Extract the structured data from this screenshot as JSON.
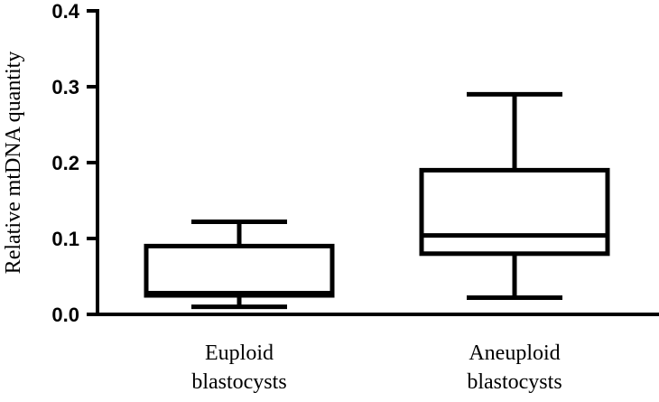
{
  "chart_data": {
    "type": "boxplot",
    "title": "",
    "xlabel": "",
    "ylabel": "Relative mtDNA quantity",
    "ylim": [
      0,
      0.4
    ],
    "yticks": [
      "0.0",
      "0.1",
      "0.2",
      "0.3",
      "0.4"
    ],
    "grid": false,
    "categories": [
      [
        "Euploid",
        "blastocysts"
      ],
      [
        "Aneuploid",
        "blastocysts"
      ]
    ],
    "boxes": [
      {
        "min": 0.01,
        "q1": 0.025,
        "median": 0.028,
        "q3": 0.09,
        "max": 0.122
      },
      {
        "min": 0.022,
        "q1": 0.08,
        "median": 0.104,
        "q3": 0.19,
        "max": 0.29
      }
    ]
  }
}
